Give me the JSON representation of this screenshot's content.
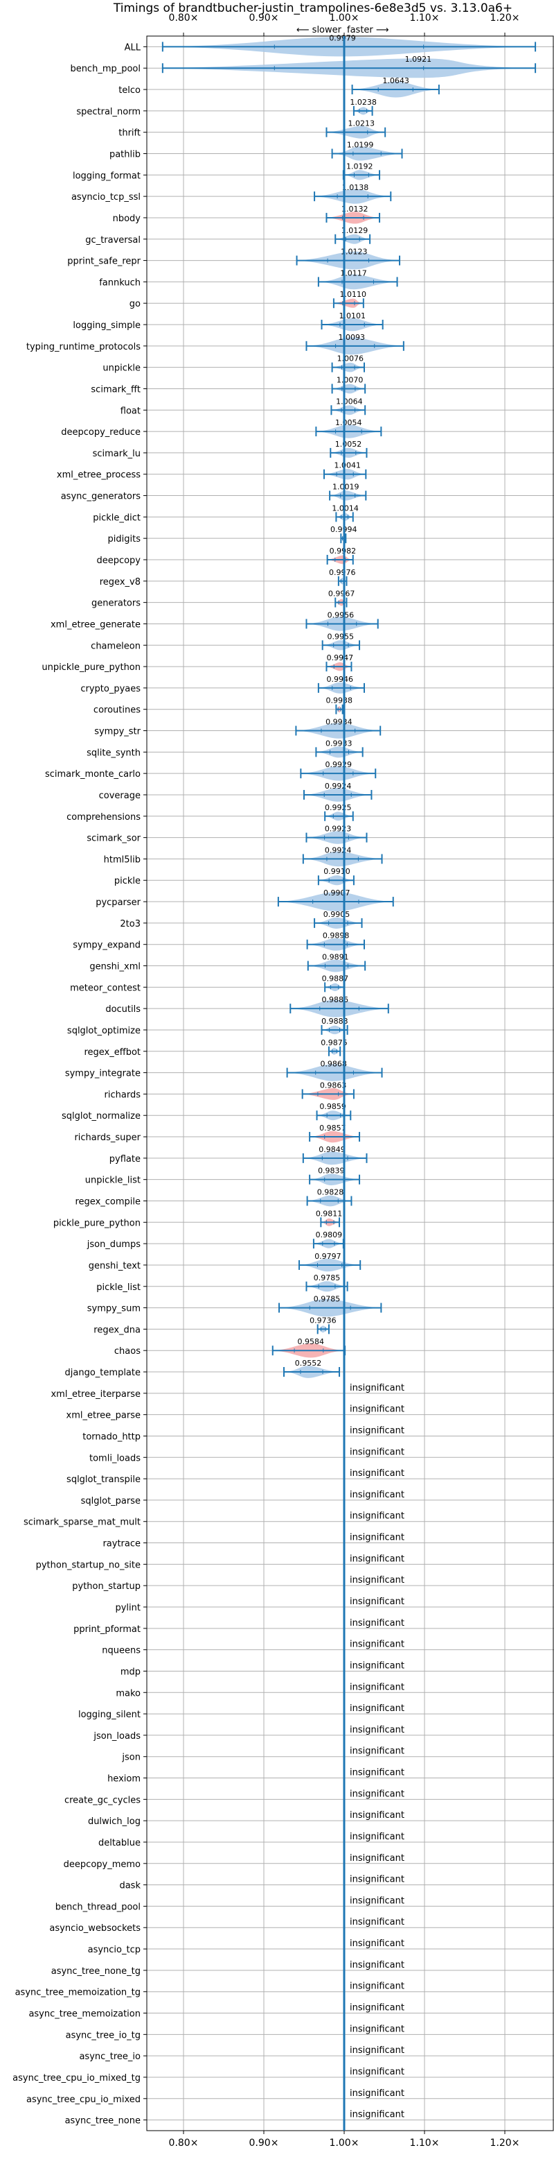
{
  "chart_data": {
    "type": "violin",
    "title": "Timings of brandtbucher-justin_trampolines-6e8e3d5 vs. 3.13.0a6+",
    "direction_slower": "⟵ slower",
    "direction_faster": "faster ⟶",
    "xlim": [
      0.75,
      1.25
    ],
    "x_ticks": [
      0.8,
      0.9,
      1.0,
      1.1,
      1.2
    ],
    "x_tick_labels": [
      "0.80×",
      "0.90×",
      "1.00×",
      "1.10×",
      "1.20×"
    ],
    "grid": true,
    "insignificant_label": "insignificant",
    "colors": {
      "faster": "#a9c9e8",
      "slower": "#f4a7a8",
      "line": "#1f77b4"
    },
    "benchmarks": [
      {
        "name": "ALL",
        "value": 0.9979,
        "label": "0.9979",
        "lo": 0.774,
        "hi": 1.238,
        "color": "blue",
        "show_label": true
      },
      {
        "name": "bench_mp_pool",
        "value": 1.0921,
        "label": "1.0921",
        "lo": 0.774,
        "hi": 1.238,
        "color": "blue",
        "show_label": true
      },
      {
        "name": "telco",
        "value": 1.0643,
        "label": "1.0643",
        "lo": 1.01,
        "hi": 1.118,
        "color": "blue",
        "show_label": true
      },
      {
        "name": "spectral_norm",
        "value": 1.0238,
        "label": "1.0238",
        "lo": 1.012,
        "hi": 1.035,
        "color": "blue",
        "show_label": true
      },
      {
        "name": "thrift",
        "value": 1.0213,
        "label": "1.0213",
        "lo": 0.978,
        "hi": 1.051,
        "color": "blue",
        "show_label": true
      },
      {
        "name": "pathlib",
        "value": 1.0199,
        "label": "1.0199",
        "lo": 0.985,
        "hi": 1.072,
        "color": "blue",
        "show_label": true
      },
      {
        "name": "logging_format",
        "value": 1.0192,
        "label": "1.0192",
        "lo": 0.999,
        "hi": 1.044,
        "color": "blue",
        "show_label": true
      },
      {
        "name": "asyncio_tcp_ssl",
        "value": 1.0138,
        "label": "1.0138",
        "lo": 0.963,
        "hi": 1.058,
        "color": "blue",
        "show_label": true
      },
      {
        "name": "nbody",
        "value": 1.0132,
        "label": "1.0132",
        "lo": 0.978,
        "hi": 1.044,
        "color": "red",
        "show_label": true
      },
      {
        "name": "gc_traversal",
        "value": 1.0129,
        "label": "1.0129",
        "lo": 0.989,
        "hi": 1.032,
        "color": "blue",
        "show_label": true
      },
      {
        "name": "pprint_safe_repr",
        "value": 1.0123,
        "label": "1.0123",
        "lo": 0.941,
        "hi": 1.069,
        "color": "blue",
        "show_label": true
      },
      {
        "name": "fannkuch",
        "value": 1.0117,
        "label": "1.0117",
        "lo": 0.968,
        "hi": 1.066,
        "color": "blue",
        "show_label": true
      },
      {
        "name": "go",
        "value": 1.011,
        "label": "1.0110",
        "lo": 0.987,
        "hi": 1.024,
        "color": "red",
        "show_label": true
      },
      {
        "name": "logging_simple",
        "value": 1.0101,
        "label": "1.0101",
        "lo": 0.972,
        "hi": 1.048,
        "color": "blue",
        "show_label": true
      },
      {
        "name": "typing_runtime_protocols",
        "value": 1.0093,
        "label": "1.0093",
        "lo": 0.953,
        "hi": 1.074,
        "color": "blue",
        "show_label": true
      },
      {
        "name": "unpickle",
        "value": 1.0076,
        "label": "1.0076",
        "lo": 0.985,
        "hi": 1.025,
        "color": "blue",
        "show_label": true
      },
      {
        "name": "scimark_fft",
        "value": 1.007,
        "label": "1.0070",
        "lo": 0.985,
        "hi": 1.026,
        "color": "blue",
        "show_label": true
      },
      {
        "name": "float",
        "value": 1.0064,
        "label": "1.0064",
        "lo": 0.984,
        "hi": 1.026,
        "color": "blue",
        "show_label": true
      },
      {
        "name": "deepcopy_reduce",
        "value": 1.0054,
        "label": "1.0054",
        "lo": 0.965,
        "hi": 1.046,
        "color": "blue",
        "show_label": true
      },
      {
        "name": "scimark_lu",
        "value": 1.0052,
        "label": "1.0052",
        "lo": 0.983,
        "hi": 1.028,
        "color": "blue",
        "show_label": true
      },
      {
        "name": "xml_etree_process",
        "value": 1.0041,
        "label": "1.0041",
        "lo": 0.975,
        "hi": 1.027,
        "color": "blue",
        "show_label": true
      },
      {
        "name": "async_generators",
        "value": 1.0019,
        "label": "1.0019",
        "lo": 0.982,
        "hi": 1.027,
        "color": "blue",
        "show_label": true
      },
      {
        "name": "pickle_dict",
        "value": 1.0014,
        "label": "1.0014",
        "lo": 0.99,
        "hi": 1.011,
        "color": "blue",
        "show_label": true
      },
      {
        "name": "pidigits",
        "value": 0.9994,
        "label": "0.9994",
        "lo": 0.996,
        "hi": 1.002,
        "color": "blue",
        "show_label": true
      },
      {
        "name": "deepcopy",
        "value": 0.9982,
        "label": "0.9982",
        "lo": 0.979,
        "hi": 1.011,
        "color": "red",
        "show_label": true
      },
      {
        "name": "regex_v8",
        "value": 0.9976,
        "label": "0.9976",
        "lo": 0.993,
        "hi": 1.003,
        "color": "blue",
        "show_label": true
      },
      {
        "name": "generators",
        "value": 0.9967,
        "label": "0.9967",
        "lo": 0.989,
        "hi": 1.003,
        "color": "red",
        "show_label": true
      },
      {
        "name": "xml_etree_generate",
        "value": 0.9956,
        "label": "0.9956",
        "lo": 0.953,
        "hi": 1.042,
        "color": "blue",
        "show_label": true
      },
      {
        "name": "chameleon",
        "value": 0.9955,
        "label": "0.9955",
        "lo": 0.973,
        "hi": 1.019,
        "color": "blue",
        "show_label": true
      },
      {
        "name": "unpickle_pure_python",
        "value": 0.9947,
        "label": "0.9947",
        "lo": 0.978,
        "hi": 1.009,
        "color": "red",
        "show_label": true
      },
      {
        "name": "crypto_pyaes",
        "value": 0.9946,
        "label": "0.9946",
        "lo": 0.968,
        "hi": 1.025,
        "color": "blue",
        "show_label": true
      },
      {
        "name": "coroutines",
        "value": 0.9938,
        "label": "0.9938",
        "lo": 0.99,
        "hi": 0.998,
        "color": "red",
        "show_label": true
      },
      {
        "name": "sympy_str",
        "value": 0.9934,
        "label": "0.9934",
        "lo": 0.94,
        "hi": 1.045,
        "color": "blue",
        "show_label": true
      },
      {
        "name": "sqlite_synth",
        "value": 0.9933,
        "label": "0.9933",
        "lo": 0.965,
        "hi": 1.023,
        "color": "blue",
        "show_label": true
      },
      {
        "name": "scimark_monte_carlo",
        "value": 0.9929,
        "label": "0.9929",
        "lo": 0.946,
        "hi": 1.039,
        "color": "blue",
        "show_label": true
      },
      {
        "name": "coverage",
        "value": 0.9924,
        "label": "0.9924",
        "lo": 0.95,
        "hi": 1.034,
        "color": "blue",
        "show_label": true
      },
      {
        "name": "comprehensions",
        "value": 0.9925,
        "label": "0.9925",
        "lo": 0.976,
        "hi": 1.011,
        "color": "blue",
        "show_label": true
      },
      {
        "name": "scimark_sor",
        "value": 0.9923,
        "label": "0.9923",
        "lo": 0.953,
        "hi": 1.028,
        "color": "blue",
        "show_label": true
      },
      {
        "name": "html5lib",
        "value": 0.9924,
        "label": "0.9924",
        "lo": 0.949,
        "hi": 1.047,
        "color": "blue",
        "show_label": true
      },
      {
        "name": "pickle",
        "value": 0.991,
        "label": "0.9910",
        "lo": 0.968,
        "hi": 1.012,
        "color": "blue",
        "show_label": true
      },
      {
        "name": "pycparser",
        "value": 0.9907,
        "label": "0.9907",
        "lo": 0.918,
        "hi": 1.061,
        "color": "blue",
        "show_label": true
      },
      {
        "name": "2to3",
        "value": 0.9905,
        "label": "0.9905",
        "lo": 0.963,
        "hi": 1.022,
        "color": "blue",
        "show_label": true
      },
      {
        "name": "sympy_expand",
        "value": 0.9898,
        "label": "0.9898",
        "lo": 0.954,
        "hi": 1.025,
        "color": "blue",
        "show_label": true
      },
      {
        "name": "genshi_xml",
        "value": 0.9891,
        "label": "0.9891",
        "lo": 0.955,
        "hi": 1.026,
        "color": "blue",
        "show_label": true
      },
      {
        "name": "meteor_contest",
        "value": 0.9887,
        "label": "0.9887",
        "lo": 0.976,
        "hi": 1.0,
        "color": "blue",
        "show_label": true
      },
      {
        "name": "docutils",
        "value": 0.9886,
        "label": "0.9886",
        "lo": 0.933,
        "hi": 1.055,
        "color": "blue",
        "show_label": true
      },
      {
        "name": "sqlglot_optimize",
        "value": 0.9883,
        "label": "0.9883",
        "lo": 0.972,
        "hi": 1.004,
        "color": "blue",
        "show_label": true
      },
      {
        "name": "regex_effbot",
        "value": 0.9875,
        "label": "0.9875",
        "lo": 0.981,
        "hi": 0.995,
        "color": "blue",
        "show_label": true
      },
      {
        "name": "sympy_integrate",
        "value": 0.9868,
        "label": "0.9868",
        "lo": 0.929,
        "hi": 1.047,
        "color": "blue",
        "show_label": true
      },
      {
        "name": "richards",
        "value": 0.9863,
        "label": "0.9863",
        "lo": 0.948,
        "hi": 1.012,
        "color": "red",
        "show_label": true
      },
      {
        "name": "sqlglot_normalize",
        "value": 0.9859,
        "label": "0.9859",
        "lo": 0.966,
        "hi": 1.008,
        "color": "blue",
        "show_label": true
      },
      {
        "name": "richards_super",
        "value": 0.9857,
        "label": "0.9857",
        "lo": 0.957,
        "hi": 1.019,
        "color": "red",
        "show_label": true
      },
      {
        "name": "pyflate",
        "value": 0.9849,
        "label": "0.9849",
        "lo": 0.949,
        "hi": 1.028,
        "color": "blue",
        "show_label": true
      },
      {
        "name": "unpickle_list",
        "value": 0.9839,
        "label": "0.9839",
        "lo": 0.957,
        "hi": 1.019,
        "color": "blue",
        "show_label": true
      },
      {
        "name": "regex_compile",
        "value": 0.9828,
        "label": "0.9828",
        "lo": 0.954,
        "hi": 1.009,
        "color": "blue",
        "show_label": true
      },
      {
        "name": "pickle_pure_python",
        "value": 0.9811,
        "label": "0.9811",
        "lo": 0.971,
        "hi": 0.994,
        "color": "red",
        "show_label": true
      },
      {
        "name": "json_dumps",
        "value": 0.9809,
        "label": "0.9809",
        "lo": 0.962,
        "hi": 0.999,
        "color": "blue",
        "show_label": true
      },
      {
        "name": "genshi_text",
        "value": 0.9797,
        "label": "0.9797",
        "lo": 0.944,
        "hi": 1.02,
        "color": "blue",
        "show_label": true
      },
      {
        "name": "pickle_list",
        "value": 0.9785,
        "label": "0.9785",
        "lo": 0.953,
        "hi": 1.004,
        "color": "blue",
        "show_label": true
      },
      {
        "name": "sympy_sum",
        "value": 0.9785,
        "label": "0.9785",
        "lo": 0.919,
        "hi": 1.046,
        "color": "blue",
        "show_label": true
      },
      {
        "name": "regex_dna",
        "value": 0.9736,
        "label": "0.9736",
        "lo": 0.967,
        "hi": 0.981,
        "color": "blue",
        "show_label": true
      },
      {
        "name": "chaos",
        "value": 0.9584,
        "label": "0.9584",
        "lo": 0.911,
        "hi": 1.001,
        "color": "red",
        "show_label": true
      },
      {
        "name": "django_template",
        "value": 0.9552,
        "label": "0.9552",
        "lo": 0.925,
        "hi": 0.994,
        "color": "blue",
        "show_label": true
      },
      {
        "name": "xml_etree_iterparse",
        "insignificant": true
      },
      {
        "name": "xml_etree_parse",
        "insignificant": true
      },
      {
        "name": "tornado_http",
        "insignificant": true
      },
      {
        "name": "tomli_loads",
        "insignificant": true
      },
      {
        "name": "sqlglot_transpile",
        "insignificant": true
      },
      {
        "name": "sqlglot_parse",
        "insignificant": true
      },
      {
        "name": "scimark_sparse_mat_mult",
        "insignificant": true
      },
      {
        "name": "raytrace",
        "insignificant": true
      },
      {
        "name": "python_startup_no_site",
        "insignificant": true
      },
      {
        "name": "python_startup",
        "insignificant": true
      },
      {
        "name": "pylint",
        "insignificant": true
      },
      {
        "name": "pprint_pformat",
        "insignificant": true
      },
      {
        "name": "nqueens",
        "insignificant": true
      },
      {
        "name": "mdp",
        "insignificant": true
      },
      {
        "name": "mako",
        "insignificant": true
      },
      {
        "name": "logging_silent",
        "insignificant": true
      },
      {
        "name": "json_loads",
        "insignificant": true
      },
      {
        "name": "json",
        "insignificant": true
      },
      {
        "name": "hexiom",
        "insignificant": true
      },
      {
        "name": "create_gc_cycles",
        "insignificant": true
      },
      {
        "name": "dulwich_log",
        "insignificant": true
      },
      {
        "name": "deltablue",
        "insignificant": true
      },
      {
        "name": "deepcopy_memo",
        "insignificant": true
      },
      {
        "name": "dask",
        "insignificant": true
      },
      {
        "name": "bench_thread_pool",
        "insignificant": true
      },
      {
        "name": "asyncio_websockets",
        "insignificant": true
      },
      {
        "name": "asyncio_tcp",
        "insignificant": true
      },
      {
        "name": "async_tree_none_tg",
        "insignificant": true
      },
      {
        "name": "async_tree_memoization_tg",
        "insignificant": true
      },
      {
        "name": "async_tree_memoization",
        "insignificant": true
      },
      {
        "name": "async_tree_io_tg",
        "insignificant": true
      },
      {
        "name": "async_tree_io",
        "insignificant": true
      },
      {
        "name": "async_tree_cpu_io_mixed_tg",
        "insignificant": true
      },
      {
        "name": "async_tree_cpu_io_mixed",
        "insignificant": true
      },
      {
        "name": "async_tree_none",
        "insignificant": true
      }
    ]
  }
}
